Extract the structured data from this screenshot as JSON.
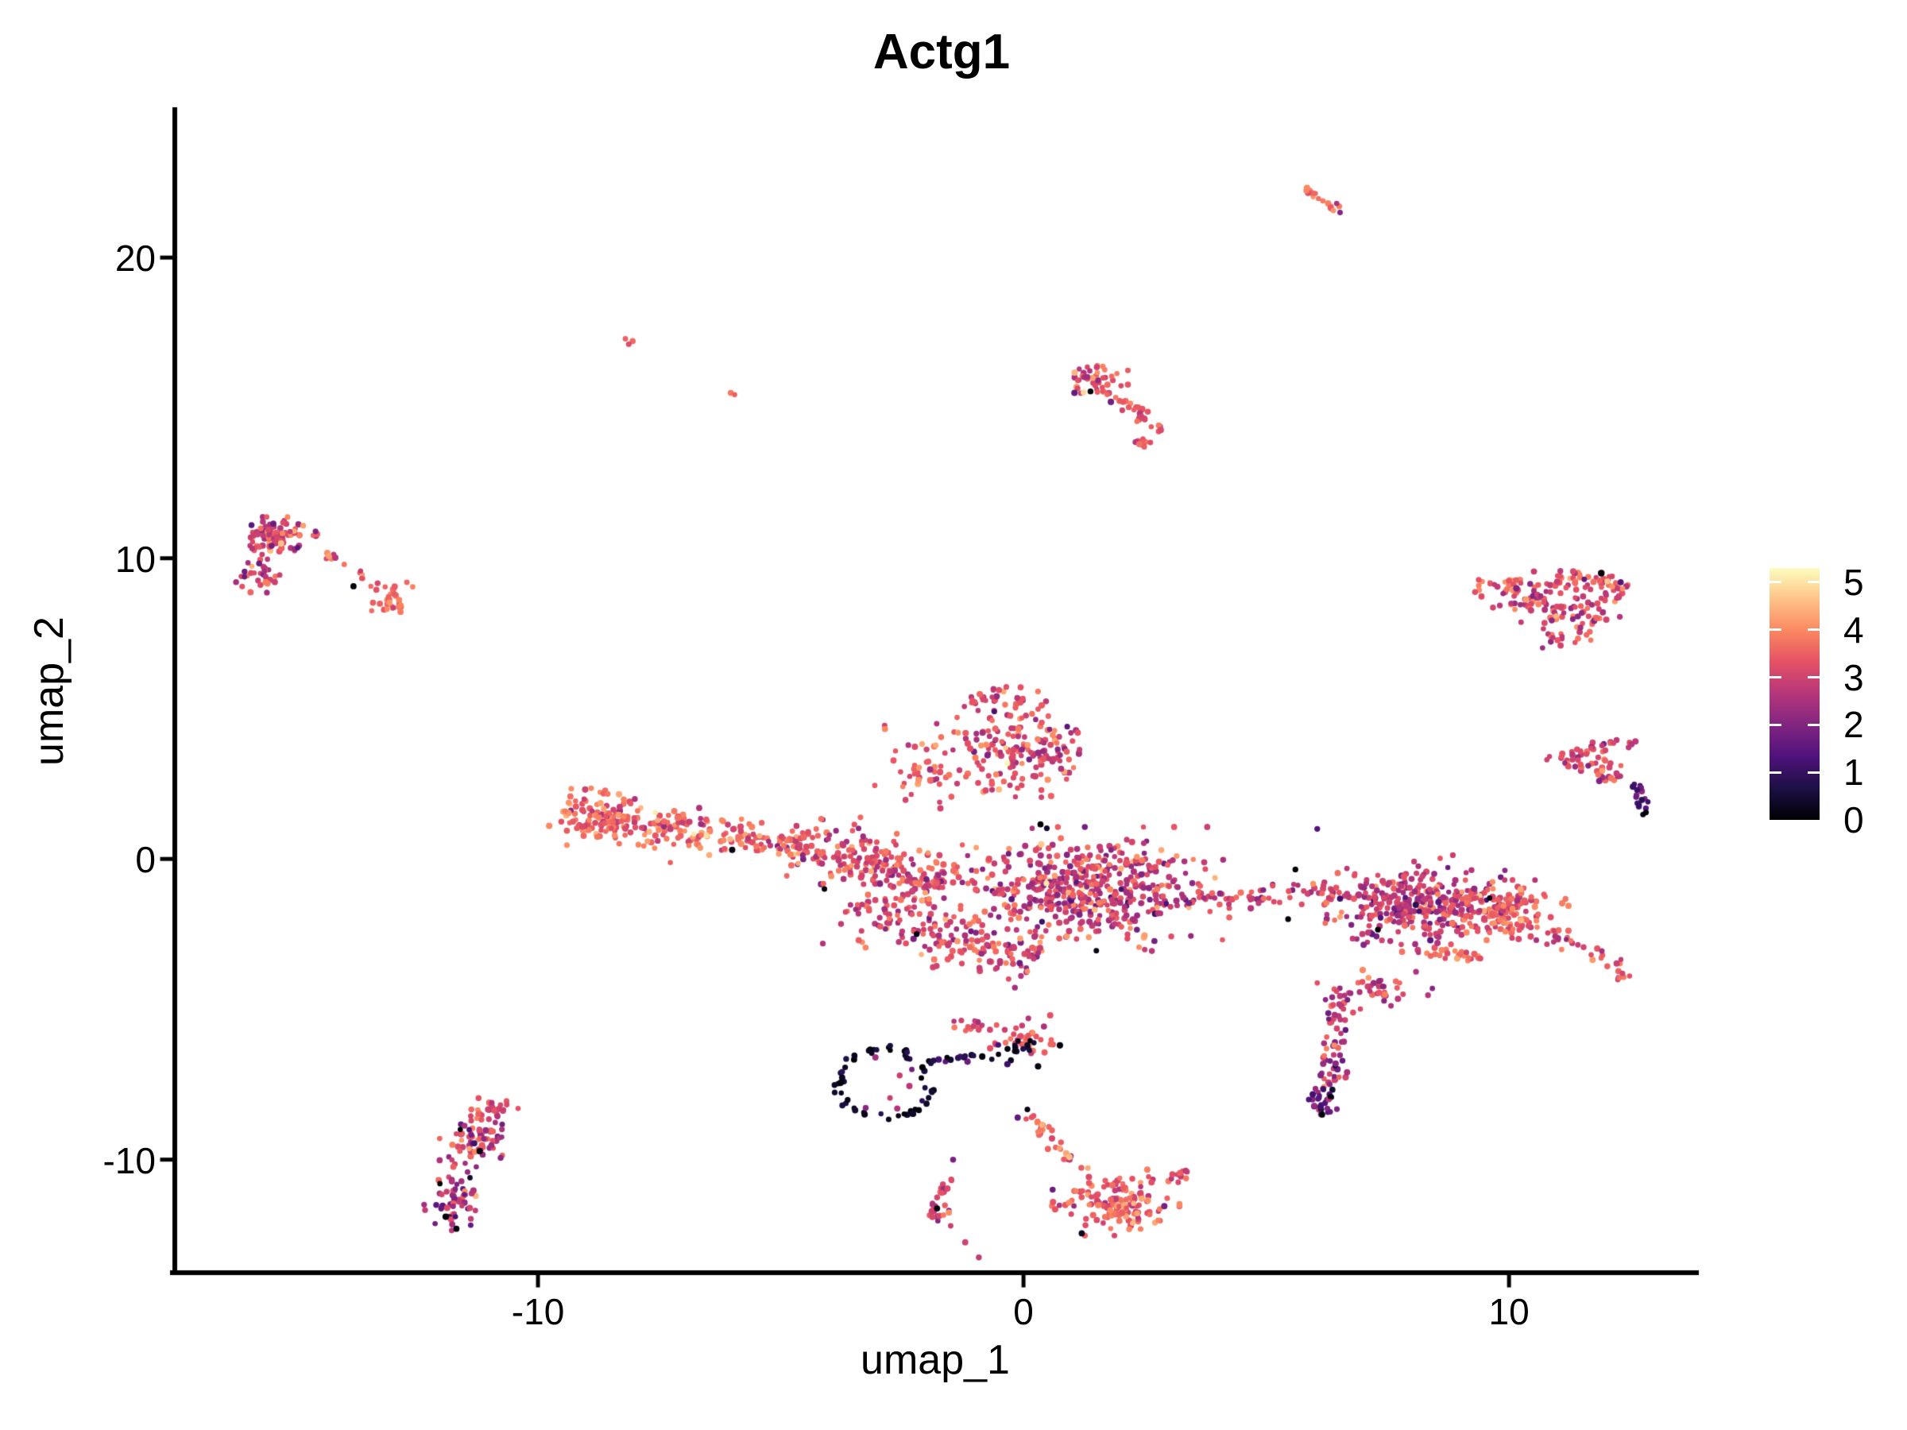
{
  "chart_data": {
    "type": "scatter",
    "title": "Actg1",
    "xlabel": "umap_1",
    "ylabel": "umap_2",
    "xlim": [
      -17.48,
      13.86
    ],
    "ylim": [
      -13.76,
      24.92
    ],
    "x_ticks": [
      -10,
      0,
      10
    ],
    "y_ticks": [
      -10,
      0,
      10,
      20
    ],
    "grid": false,
    "legend_position": "right",
    "point_radius_px": 3.6,
    "colorbar": {
      "ticks": [
        0,
        1,
        2,
        3,
        4,
        5
      ],
      "vmin": 0,
      "vmax": 5.3,
      "colormap": "magma",
      "stops": [
        "#000004",
        "#1C1044",
        "#4F127B",
        "#812581",
        "#B5367A",
        "#E55064",
        "#FB8761",
        "#FEC287",
        "#FCFDBF"
      ]
    },
    "clusters": [
      {
        "name": "top-streak",
        "shape": "line",
        "x1": 5.73,
        "y1": 22.33,
        "x2": 6.5,
        "y2": 21.55,
        "w": 0.12,
        "n": 16,
        "expr": [
          3.7,
          0.25
        ]
      },
      {
        "name": "upper-mid-comet-head",
        "shape": "blob",
        "cx": 1.5,
        "cy": 16.0,
        "rx": 0.52,
        "ry": 0.42,
        "n": 40,
        "expr": [
          3.3,
          0.55
        ]
      },
      {
        "name": "upper-mid-comet-streak",
        "shape": "line",
        "x1": 1.55,
        "y1": 15.6,
        "x2": 2.55,
        "y2": 14.85,
        "w": 0.09,
        "n": 18,
        "expr": [
          3.5,
          0.3
        ]
      },
      {
        "name": "upper-mid-comet-lower",
        "shape": "line",
        "x1": 2.05,
        "y1": 15.0,
        "x2": 2.95,
        "y2": 14.15,
        "w": 0.14,
        "n": 14,
        "expr": [
          3.4,
          0.4
        ]
      },
      {
        "name": "upper-mid-comet-tail",
        "shape": "blob",
        "cx": 2.42,
        "cy": 13.85,
        "rx": 0.24,
        "ry": 0.26,
        "n": 10,
        "expr": [
          3.3,
          0.5
        ]
      },
      {
        "name": "left-cluster-main",
        "shape": "blob",
        "cx": -15.35,
        "cy": 10.75,
        "rx": 0.75,
        "ry": 0.5,
        "n": 85,
        "expr": [
          3.15,
          0.6
        ]
      },
      {
        "name": "left-cluster-lower",
        "shape": "blob",
        "cx": -15.75,
        "cy": 9.45,
        "rx": 0.38,
        "ry": 0.58,
        "n": 32,
        "expr": [
          3.0,
          0.65
        ]
      },
      {
        "name": "left-cluster-trail",
        "shape": "line",
        "x1": -14.4,
        "y1": 10.2,
        "x2": -13.25,
        "y2": 8.95,
        "w": 0.16,
        "n": 16,
        "expr": [
          3.3,
          0.5
        ]
      },
      {
        "name": "left-cluster-end",
        "shape": "blob",
        "cx": -13.0,
        "cy": 8.55,
        "rx": 0.34,
        "ry": 0.44,
        "n": 26,
        "expr": [
          3.8,
          0.4
        ]
      },
      {
        "name": "central-left-arm",
        "shape": "blob",
        "cx": -8.7,
        "cy": 1.35,
        "rx": 0.95,
        "ry": 0.8,
        "n": 140,
        "expr": [
          3.6,
          0.5
        ]
      },
      {
        "name": "central-bridge",
        "shape": "line",
        "x1": -7.7,
        "y1": 1.1,
        "x2": -4.6,
        "y2": 0.45,
        "w": 0.6,
        "n": 150,
        "expr": [
          3.5,
          0.55
        ]
      },
      {
        "name": "central-mid-band",
        "shape": "line",
        "x1": -4.6,
        "y1": 0.6,
        "x2": -1.6,
        "y2": -0.9,
        "w": 0.9,
        "n": 230,
        "expr": [
          3.25,
          0.6
        ]
      },
      {
        "name": "central-top-lobe",
        "shape": "blob",
        "cx": -0.1,
        "cy": 3.6,
        "rx": 1.35,
        "ry": 1.35,
        "n": 175,
        "expr": [
          3.1,
          0.65
        ]
      },
      {
        "name": "central-top-peak",
        "shape": "blob",
        "cx": -0.5,
        "cy": 5.3,
        "rx": 0.7,
        "ry": 0.5,
        "n": 35,
        "expr": [
          3.35,
          0.5
        ]
      },
      {
        "name": "central-topleft-fringe",
        "shape": "blob",
        "cx": -2.0,
        "cy": 3.0,
        "rx": 0.85,
        "ry": 1.15,
        "n": 45,
        "expr": [
          3.3,
          0.5
        ]
      },
      {
        "name": "central-right-mass",
        "shape": "blob",
        "cx": 1.3,
        "cy": -1.0,
        "rx": 2.35,
        "ry": 1.65,
        "n": 520,
        "expr": [
          2.95,
          0.7
        ]
      },
      {
        "name": "central-bottom-band",
        "shape": "line",
        "x1": -3.6,
        "y1": -1.6,
        "x2": 0.3,
        "y2": -3.4,
        "w": 0.85,
        "n": 175,
        "expr": [
          3.1,
          0.6
        ]
      },
      {
        "name": "central-right-tail",
        "shape": "line",
        "x1": 3.6,
        "y1": -1.3,
        "x2": 6.6,
        "y2": -1.05,
        "w": 0.4,
        "n": 55,
        "expr": [
          3.0,
          0.6
        ]
      },
      {
        "name": "right-cluster-main",
        "shape": "blob",
        "cx": 8.0,
        "cy": -1.5,
        "rx": 1.75,
        "ry": 1.3,
        "n": 320,
        "expr": [
          2.8,
          0.65
        ]
      },
      {
        "name": "right-cluster-salmon",
        "shape": "blob",
        "cx": 9.9,
        "cy": -1.7,
        "rx": 1.15,
        "ry": 0.8,
        "n": 150,
        "expr": [
          3.5,
          0.45
        ]
      },
      {
        "name": "right-cluster-hook",
        "shape": "line",
        "x1": 10.8,
        "y1": -2.4,
        "x2": 12.55,
        "y2": -3.85,
        "w": 0.3,
        "n": 35,
        "expr": [
          3.25,
          0.5
        ]
      },
      {
        "name": "right-cluster-strip",
        "shape": "line",
        "x1": 8.3,
        "y1": -3.1,
        "x2": 9.5,
        "y2": -3.25,
        "w": 0.18,
        "n": 25,
        "expr": [
          3.6,
          0.3
        ]
      },
      {
        "name": "right-cluster-bottom",
        "shape": "blob",
        "cx": 7.3,
        "cy": -4.3,
        "rx": 1.0,
        "ry": 0.55,
        "n": 40,
        "expr": [
          3.0,
          0.6
        ]
      },
      {
        "name": "right-cluster-arm",
        "shape": "line",
        "x1": 6.55,
        "y1": -4.3,
        "x2": 6.25,
        "y2": -7.6,
        "w": 0.3,
        "n": 60,
        "expr": [
          2.6,
          0.6
        ]
      },
      {
        "name": "right-cluster-arm-tip",
        "shape": "blob",
        "cx": 6.2,
        "cy": -8.05,
        "rx": 0.26,
        "ry": 0.5,
        "n": 28,
        "expr": [
          1.7,
          0.5
        ]
      },
      {
        "name": "ne-triangle-top",
        "shape": "line",
        "x1": 9.35,
        "y1": 9.0,
        "x2": 12.1,
        "y2": 9.35,
        "w": 0.32,
        "n": 70,
        "expr": [
          3.4,
          0.5
        ]
      },
      {
        "name": "ne-triangle-fill-left",
        "shape": "blob",
        "cx": 10.3,
        "cy": 8.5,
        "rx": 0.8,
        "ry": 0.5,
        "n": 40,
        "expr": [
          3.2,
          0.6
        ]
      },
      {
        "name": "ne-triangle-fill-right",
        "shape": "blob",
        "cx": 11.5,
        "cy": 8.2,
        "rx": 0.75,
        "ry": 0.75,
        "n": 50,
        "expr": [
          3.15,
          0.6
        ]
      },
      {
        "name": "ne-triangle-head",
        "shape": "blob",
        "cx": 12.15,
        "cy": 8.95,
        "rx": 0.32,
        "ry": 0.36,
        "n": 22,
        "expr": [
          3.2,
          0.6
        ]
      },
      {
        "name": "ne-triangle-apex",
        "shape": "blob",
        "cx": 11.15,
        "cy": 7.3,
        "rx": 0.5,
        "ry": 0.42,
        "n": 18,
        "expr": [
          3.1,
          0.6
        ]
      },
      {
        "name": "east-dart-top",
        "shape": "line",
        "x1": 10.85,
        "y1": 3.35,
        "x2": 12.65,
        "y2": 3.95,
        "w": 0.16,
        "n": 30,
        "expr": [
          3.1,
          0.5
        ]
      },
      {
        "name": "east-dart-lower",
        "shape": "line",
        "x1": 10.9,
        "y1": 3.2,
        "x2": 12.3,
        "y2": 2.6,
        "w": 0.16,
        "n": 20,
        "expr": [
          3.0,
          0.5
        ]
      },
      {
        "name": "east-dart-inner",
        "shape": "blob",
        "cx": 11.9,
        "cy": 3.15,
        "rx": 0.5,
        "ry": 0.35,
        "n": 15,
        "expr": [
          3.2,
          0.5
        ]
      },
      {
        "name": "east-dart-tail",
        "shape": "line",
        "x1": 12.55,
        "y1": 2.55,
        "x2": 12.8,
        "y2": 1.65,
        "w": 0.13,
        "n": 14,
        "expr": [
          1.6,
          0.6
        ]
      },
      {
        "name": "sw-cluster-top",
        "shape": "blob",
        "cx": -10.95,
        "cy": -8.35,
        "rx": 0.45,
        "ry": 0.38,
        "n": 25,
        "expr": [
          3.3,
          0.5
        ]
      },
      {
        "name": "sw-cluster-main",
        "shape": "blob",
        "cx": -11.3,
        "cy": -9.35,
        "rx": 0.58,
        "ry": 0.85,
        "n": 75,
        "expr": [
          2.9,
          0.75
        ]
      },
      {
        "name": "sw-cluster-lower",
        "shape": "blob",
        "cx": -11.8,
        "cy": -11.3,
        "rx": 0.48,
        "ry": 0.85,
        "n": 55,
        "expr": [
          2.55,
          0.8
        ]
      },
      {
        "name": "dark-ring",
        "shape": "ring",
        "cx": -2.86,
        "cy": -7.5,
        "rx": 0.93,
        "ry": 1.15,
        "n": 58,
        "expr": [
          0.3,
          0.3
        ]
      },
      {
        "name": "ring-chain",
        "shape": "line",
        "x1": -1.95,
        "y1": -6.75,
        "x2": -0.95,
        "y2": -6.6,
        "w": 0.16,
        "n": 14,
        "expr": [
          0.9,
          0.6
        ]
      },
      {
        "name": "ring-east-blob-bright",
        "shape": "blob",
        "cx": 0.1,
        "cy": -6.0,
        "rx": 0.72,
        "ry": 0.5,
        "n": 35,
        "expr": [
          3.4,
          0.5
        ]
      },
      {
        "name": "ring-east-blob-dark",
        "shape": "blob",
        "cx": -0.1,
        "cy": -6.35,
        "rx": 0.6,
        "ry": 0.38,
        "n": 18,
        "expr": [
          0.45,
          0.4
        ]
      },
      {
        "name": "ring-north-fringe",
        "shape": "blob",
        "cx": -0.9,
        "cy": -5.5,
        "rx": 0.55,
        "ry": 0.3,
        "n": 14,
        "expr": [
          3.1,
          0.5
        ]
      },
      {
        "name": "south-comet-neck",
        "shape": "line",
        "x1": 0.1,
        "y1": -8.5,
        "x2": 1.05,
        "y2": -10.1,
        "w": 0.2,
        "n": 30,
        "expr": [
          3.5,
          0.45
        ]
      },
      {
        "name": "south-comet-blob",
        "shape": "blob",
        "cx": 1.9,
        "cy": -11.4,
        "rx": 1.05,
        "ry": 0.9,
        "n": 150,
        "expr": [
          3.5,
          0.55
        ]
      },
      {
        "name": "south-comet-hook",
        "shape": "line",
        "x1": 2.9,
        "y1": -10.9,
        "x2": 3.35,
        "y2": -10.35,
        "w": 0.16,
        "n": 12,
        "expr": [
          3.3,
          0.5
        ]
      },
      {
        "name": "south-left-streak",
        "shape": "line",
        "x1": -1.35,
        "y1": -10.2,
        "x2": -1.85,
        "y2": -11.5,
        "w": 0.12,
        "n": 12,
        "expr": [
          2.9,
          0.45
        ]
      },
      {
        "name": "south-left-tip",
        "shape": "blob",
        "cx": -1.78,
        "cy": -11.7,
        "rx": 0.26,
        "ry": 0.3,
        "n": 13,
        "expr": [
          2.75,
          0.6
        ]
      }
    ],
    "extra_points": [
      [
        6.45,
        21.8,
        2.5
      ],
      [
        6.52,
        21.5,
        2.0
      ],
      [
        -8.2,
        17.3,
        3.5
      ],
      [
        -8.05,
        17.22,
        3.6
      ],
      [
        -8.13,
        17.12,
        3.2
      ],
      [
        -6.03,
        15.5,
        3.8
      ],
      [
        -5.95,
        15.44,
        3.5
      ],
      [
        1.38,
        15.55,
        0.05
      ],
      [
        1.05,
        15.5,
        1.6
      ],
      [
        1.8,
        15.2,
        1.8
      ],
      [
        -15.9,
        11.1,
        1.5
      ],
      [
        -15.45,
        11.15,
        1.7
      ],
      [
        -14.95,
        10.35,
        1.4
      ],
      [
        -13.8,
        9.07,
        0.03
      ],
      [
        -12.7,
        9.2,
        3.6
      ],
      [
        -12.58,
        9.05,
        3.9
      ],
      [
        -4.1,
        -1.0,
        0.06
      ],
      [
        0.35,
        1.15,
        0.05
      ],
      [
        0.48,
        1.02,
        0.4
      ],
      [
        -2.2,
        -2.5,
        0.15
      ],
      [
        1.5,
        -3.05,
        0.2
      ],
      [
        -6.0,
        0.3,
        0.15
      ],
      [
        -0.6,
        4.9,
        1.2
      ],
      [
        0.9,
        4.4,
        1.5
      ],
      [
        5.6,
        -0.35,
        0.05
      ],
      [
        5.45,
        -2.0,
        0.08
      ],
      [
        7.3,
        -2.35,
        0.05
      ],
      [
        9.6,
        -1.3,
        0.12
      ],
      [
        6.05,
        1.0,
        1.4
      ],
      [
        6.15,
        -8.5,
        0.06
      ],
      [
        6.32,
        -7.9,
        0.12
      ],
      [
        11.9,
        9.5,
        0.05
      ],
      [
        12.3,
        9.2,
        1.4
      ],
      [
        11.55,
        9.3,
        1.6
      ],
      [
        12.82,
        1.55,
        0.05
      ],
      [
        12.76,
        1.48,
        0.12
      ],
      [
        12.68,
        1.8,
        1.0
      ],
      [
        10.78,
        3.3,
        3.0
      ],
      [
        -11.6,
        -9.0,
        0.05
      ],
      [
        -11.2,
        -9.72,
        0.1
      ],
      [
        -11.9,
        -11.9,
        0.06
      ],
      [
        -11.68,
        -12.3,
        0.12
      ],
      [
        -12.02,
        -10.8,
        0.05
      ],
      [
        -11.4,
        -10.6,
        0.4
      ],
      [
        -2.55,
        -7.2,
        2.9
      ],
      [
        -2.35,
        -7.55,
        2.7
      ],
      [
        -2.75,
        -7.95,
        2.9
      ],
      [
        -2.3,
        -7.0,
        1.8
      ],
      [
        -2.6,
        -8.3,
        2.6
      ],
      [
        -3.25,
        -8.28,
        2.1
      ],
      [
        -3.05,
        -6.6,
        2.4
      ],
      [
        0.1,
        -5.3,
        2.6
      ],
      [
        -1.28,
        -5.37,
        3.0
      ],
      [
        0.55,
        -5.2,
        3.3
      ],
      [
        0.75,
        -6.2,
        0.1
      ],
      [
        0.3,
        -6.9,
        0.15
      ],
      [
        0.08,
        -8.33,
        0.06
      ],
      [
        -0.12,
        -8.6,
        1.6
      ],
      [
        0.6,
        -11.0,
        1.7
      ],
      [
        2.9,
        -11.55,
        1.8
      ],
      [
        1.2,
        -12.45,
        0.3
      ],
      [
        -1.45,
        -10.0,
        1.9
      ],
      [
        -1.78,
        -11.62,
        0.1
      ],
      [
        -1.5,
        -12.2,
        2.9
      ],
      [
        -1.2,
        -12.75,
        3.0
      ],
      [
        -0.92,
        -13.25,
        2.8
      ]
    ]
  }
}
